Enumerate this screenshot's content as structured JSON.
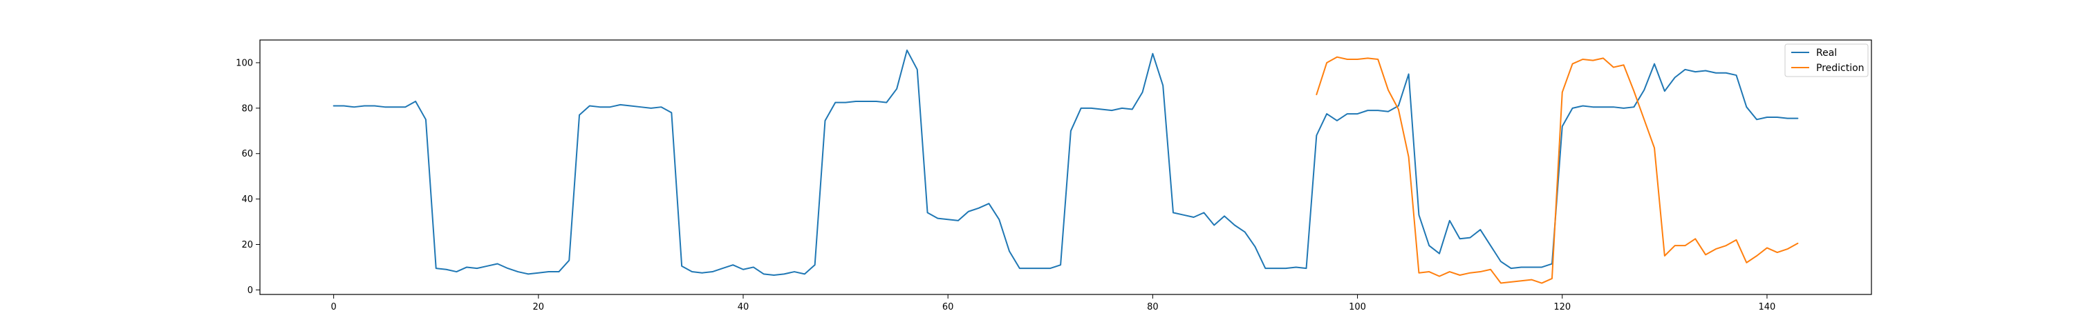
{
  "chart_data": {
    "type": "line",
    "title": "",
    "xlabel": "",
    "ylabel": "",
    "xlim": [
      -7.2,
      150.2
    ],
    "ylim": [
      -2,
      110
    ],
    "xticks": [
      0,
      20,
      40,
      60,
      80,
      100,
      120,
      140
    ],
    "yticks": [
      0,
      20,
      40,
      60,
      80,
      100
    ],
    "xtick_labels": [
      "0",
      "20",
      "40",
      "60",
      "80",
      "100",
      "120",
      "140"
    ],
    "ytick_labels": [
      "0",
      "20",
      "40",
      "60",
      "80",
      "100"
    ],
    "grid": false,
    "legend_position": "top-right",
    "series": [
      {
        "name": "Real",
        "color": "#1f77b4",
        "x_start": 0,
        "values": [
          81,
          81,
          80.5,
          81,
          81,
          80.5,
          80.5,
          80.5,
          83,
          75,
          9.5,
          9,
          8,
          10,
          9.5,
          10.5,
          11.5,
          9.5,
          8,
          7,
          7.5,
          8,
          8,
          13,
          77,
          81,
          80.5,
          80.5,
          81.5,
          81,
          80.5,
          80,
          80.5,
          78,
          10.5,
          8,
          7.5,
          8,
          9.5,
          11,
          9,
          10,
          7,
          6.5,
          7,
          8,
          7,
          11,
          74.5,
          82.5,
          82.5,
          83,
          83,
          83,
          82.5,
          88.5,
          105.5,
          97,
          34,
          31.5,
          31,
          30.5,
          34.5,
          36,
          38,
          31,
          17,
          9.5,
          9.5,
          9.5,
          9.5,
          11,
          70,
          80,
          80,
          79.5,
          79,
          80,
          79.5,
          87,
          104,
          90,
          34,
          33,
          32,
          34,
          28.5,
          32.5,
          28.5,
          25.5,
          19,
          9.5,
          9.5,
          9.5,
          10,
          9.5,
          68,
          77.5,
          74.5,
          77.5,
          77.5,
          79,
          79,
          78.5,
          81,
          95,
          33,
          19.5,
          16,
          30.5,
          22.5,
          23,
          26.5,
          19.5,
          12.5,
          9.5,
          10,
          10,
          10,
          11.5,
          72,
          80,
          81,
          80.5,
          80.5,
          80.5,
          80,
          80.5,
          88,
          99.5,
          87.5,
          93.5,
          97,
          96,
          96.5,
          95.5,
          95.5,
          94.5,
          80.5,
          75,
          76,
          76,
          75.5,
          75.5
        ]
      },
      {
        "name": "Prediction",
        "color": "#ff7f0e",
        "x_start": 96,
        "values": [
          86,
          100,
          102.5,
          101.5,
          101.5,
          102,
          101.5,
          88,
          79.5,
          58.5,
          7.5,
          8,
          6,
          8,
          6.5,
          7.5,
          8,
          9,
          3,
          3.5,
          4,
          4.5,
          3,
          5,
          87,
          99.5,
          101.5,
          101,
          102,
          98,
          99,
          87.5,
          75,
          62.5,
          15,
          19.5,
          19.5,
          22.5,
          15.5,
          18,
          19.5,
          22,
          12,
          15,
          18.5,
          16.5,
          18,
          20.5
        ]
      }
    ]
  }
}
